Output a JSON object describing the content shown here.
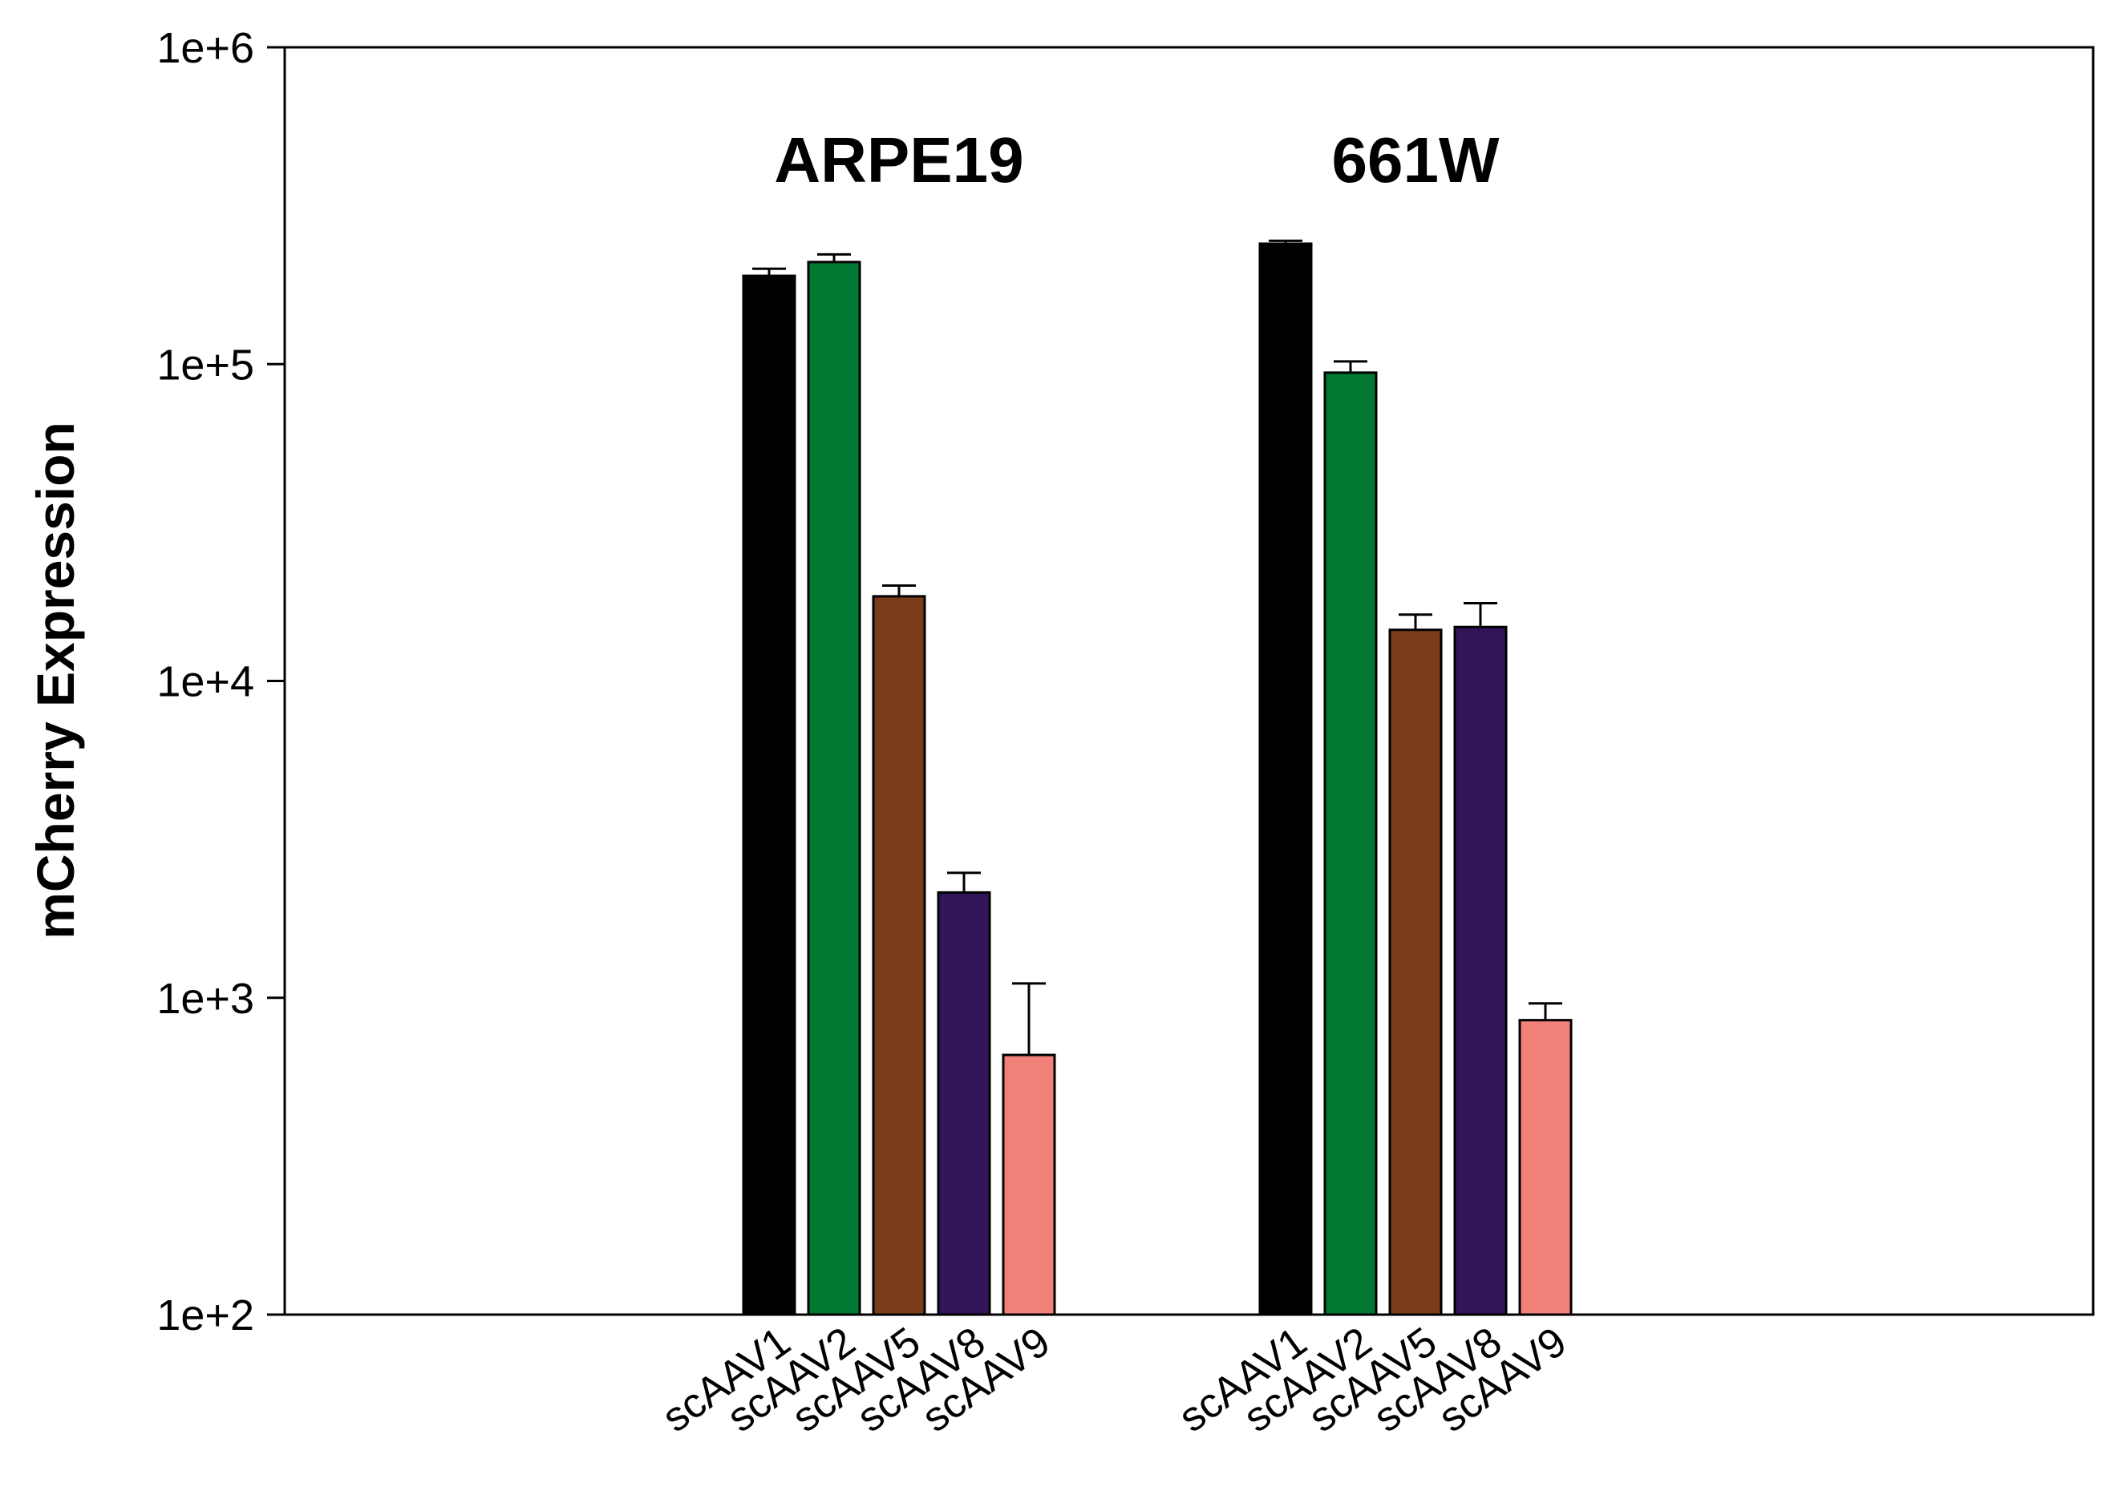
{
  "chart_data": {
    "type": "bar",
    "title": "",
    "xlabel": "",
    "ylabel": "mCherry Expression",
    "yscale": "log",
    "ylim": [
      100,
      1000000
    ],
    "yticks": [
      {
        "value": 100,
        "label": "1e+2"
      },
      {
        "value": 1000,
        "label": "1e+3"
      },
      {
        "value": 10000,
        "label": "1e+4"
      },
      {
        "value": 100000,
        "label": "1e+5"
      },
      {
        "value": 1000000,
        "label": "1e+6"
      }
    ],
    "grid": false,
    "legend": "none",
    "categories": [
      "scAAV1",
      "scAAV2",
      "scAAV5",
      "scAAV8",
      "scAAV9"
    ],
    "colors": [
      "#000000",
      "#007832",
      "#7a3d1c",
      "#31145a",
      "#f08078"
    ],
    "groups": [
      {
        "name": "ARPE19",
        "values": [
          190000,
          210000,
          18500,
          2150,
          660
        ],
        "errors": [
          10000,
          12000,
          1500,
          330,
          450
        ]
      },
      {
        "name": "661W",
        "values": [
          240000,
          94000,
          14500,
          14800,
          850
        ],
        "errors": [
          5000,
          8000,
          1700,
          2800,
          110
        ]
      }
    ]
  }
}
